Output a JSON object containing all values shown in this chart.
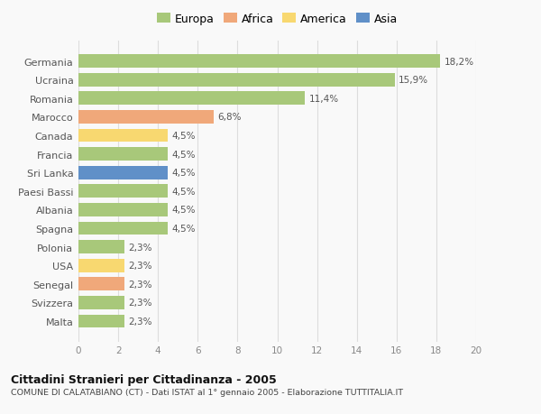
{
  "countries": [
    "Germania",
    "Ucraina",
    "Romania",
    "Marocco",
    "Canada",
    "Francia",
    "Sri Lanka",
    "Paesi Bassi",
    "Albania",
    "Spagna",
    "Polonia",
    "USA",
    "Senegal",
    "Svizzera",
    "Malta"
  ],
  "values": [
    18.2,
    15.9,
    11.4,
    6.8,
    4.5,
    4.5,
    4.5,
    4.5,
    4.5,
    4.5,
    2.3,
    2.3,
    2.3,
    2.3,
    2.3
  ],
  "labels": [
    "18,2%",
    "15,9%",
    "11,4%",
    "6,8%",
    "4,5%",
    "4,5%",
    "4,5%",
    "4,5%",
    "4,5%",
    "4,5%",
    "2,3%",
    "2,3%",
    "2,3%",
    "2,3%",
    "2,3%"
  ],
  "continent": [
    "Europa",
    "Europa",
    "Europa",
    "Africa",
    "America",
    "Europa",
    "Asia",
    "Europa",
    "Europa",
    "Europa",
    "Europa",
    "America",
    "Africa",
    "Europa",
    "Europa"
  ],
  "colors": {
    "Europa": "#a8c87a",
    "Africa": "#f0a87a",
    "America": "#f8d870",
    "Asia": "#6090c8"
  },
  "xlim": [
    0,
    20
  ],
  "xticks": [
    0,
    2,
    4,
    6,
    8,
    10,
    12,
    14,
    16,
    18,
    20
  ],
  "title": "Cittadini Stranieri per Cittadinanza - 2005",
  "subtitle": "COMUNE DI CALATABIANO (CT) - Dati ISTAT al 1° gennaio 2005 - Elaborazione TUTTITALIA.IT",
  "bg_color": "#f9f9f9",
  "bar_height": 0.72,
  "legend_entries": [
    "Europa",
    "Africa",
    "America",
    "Asia"
  ]
}
